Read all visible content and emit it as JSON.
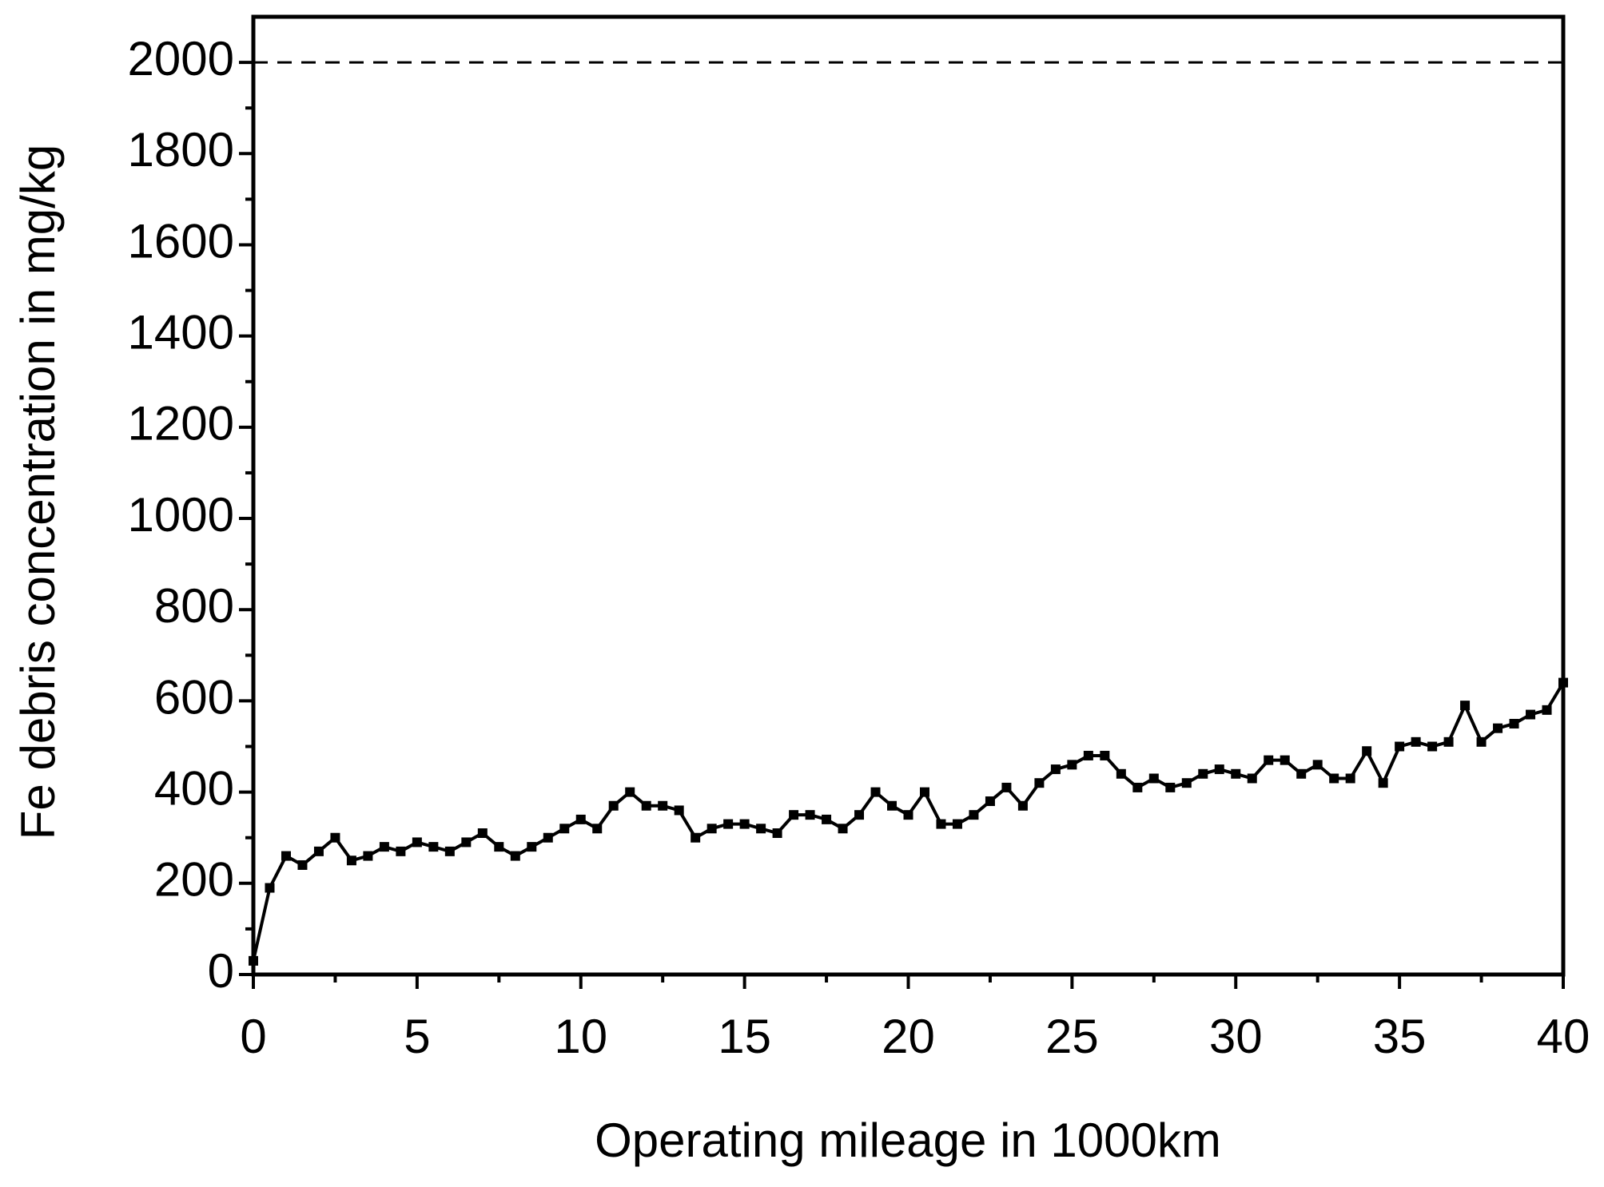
{
  "chart_data": {
    "type": "line",
    "x_label": "Operating mileage in 1000km",
    "y_label": "Fe debris concentration in mg/kg",
    "x": [
      0,
      0.5,
      1,
      1.5,
      2,
      2.5,
      3,
      3.5,
      4,
      4.5,
      5,
      5.5,
      6,
      6.5,
      7,
      7.5,
      8,
      8.5,
      9,
      9.5,
      10,
      10.5,
      11,
      11.5,
      12,
      12.5,
      13,
      13.5,
      14,
      14.5,
      15,
      15.5,
      16,
      16.5,
      17,
      17.5,
      18,
      18.5,
      19,
      19.5,
      20,
      20.5,
      21,
      21.5,
      22,
      22.5,
      23,
      23.5,
      24,
      24.5,
      25,
      25.5,
      26,
      26.5,
      27,
      27.5,
      28,
      28.5,
      29,
      29.5,
      30,
      30.5,
      31,
      31.5,
      32,
      32.5,
      33,
      33.5,
      34,
      34.5,
      35,
      35.5,
      36,
      36.5,
      37,
      37.5,
      38,
      38.5,
      39,
      39.5,
      40
    ],
    "series": [
      {
        "color": "#000000",
        "marker": "square",
        "values": [
          30,
          190,
          260,
          240,
          270,
          300,
          250,
          260,
          280,
          270,
          290,
          280,
          270,
          290,
          310,
          280,
          260,
          280,
          300,
          320,
          340,
          320,
          370,
          400,
          370,
          370,
          360,
          300,
          320,
          330,
          330,
          320,
          310,
          350,
          350,
          340,
          320,
          350,
          400,
          370,
          350,
          400,
          330,
          330,
          350,
          380,
          410,
          370,
          420,
          450,
          460,
          480,
          480,
          440,
          410,
          430,
          410,
          420,
          440,
          450,
          440,
          430,
          470,
          470,
          440,
          460,
          430,
          430,
          490,
          420,
          500,
          510,
          500,
          510,
          590,
          510,
          540,
          550,
          570,
          580,
          640
        ]
      }
    ],
    "reference_line": 2000,
    "xlim": [
      0,
      40
    ],
    "xticks": [
      0,
      5,
      10,
      15,
      20,
      25,
      30,
      35,
      40
    ],
    "ylim": [
      0,
      2100
    ],
    "yticks": [
      0,
      200,
      400,
      600,
      800,
      1000,
      1200,
      1400,
      1600,
      1800,
      2000
    ],
    "grid": false
  }
}
